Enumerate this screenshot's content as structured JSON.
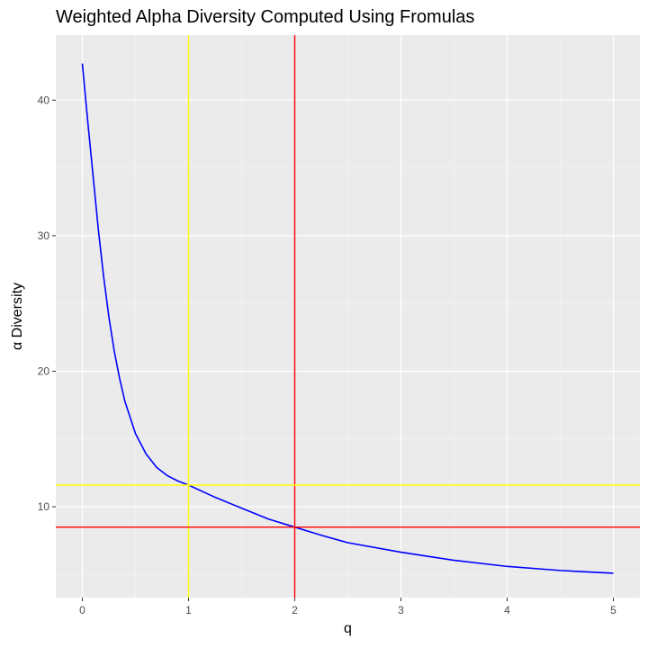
{
  "chart_data": {
    "type": "line",
    "title": "Weighted Alpha Diversity Computed Using Fromulas",
    "xlabel": "q",
    "ylabel": "α Diversity",
    "xlim": [
      -0.25,
      5.25
    ],
    "ylim": [
      3.3,
      44.8
    ],
    "x_ticks": [
      0,
      1,
      2,
      3,
      4,
      5
    ],
    "y_ticks": [
      10,
      20,
      30,
      40
    ],
    "grid": true,
    "series": [
      {
        "color": "#0000ff",
        "x": [
          0,
          0.05,
          0.1,
          0.15,
          0.2,
          0.25,
          0.3,
          0.35,
          0.4,
          0.5,
          0.6,
          0.7,
          0.8,
          0.9,
          1.0,
          1.25,
          1.5,
          1.75,
          2.0,
          2.25,
          2.5,
          3.0,
          3.5,
          4.0,
          4.5,
          5.0
        ],
        "y": [
          42.7,
          38.5,
          34.5,
          30.5,
          27.0,
          24.0,
          21.5,
          19.5,
          17.8,
          15.4,
          13.9,
          12.9,
          12.3,
          11.9,
          11.6,
          10.7,
          9.9,
          9.1,
          8.5,
          7.9,
          7.35,
          6.65,
          6.05,
          5.6,
          5.3,
          5.1
        ]
      }
    ],
    "reference_lines": [
      {
        "orientation": "vertical",
        "x": 1,
        "color": "#ffff00"
      },
      {
        "orientation": "vertical",
        "x": 2,
        "color": "#ff0000"
      },
      {
        "orientation": "horizontal",
        "y": 11.6,
        "color": "#ffff00"
      },
      {
        "orientation": "horizontal",
        "y": 8.5,
        "color": "#ff0000"
      }
    ],
    "colors": {
      "panel_background": "#ebebeb",
      "grid_major": "#ffffff",
      "grid_minor": "#f5f5f5"
    }
  }
}
